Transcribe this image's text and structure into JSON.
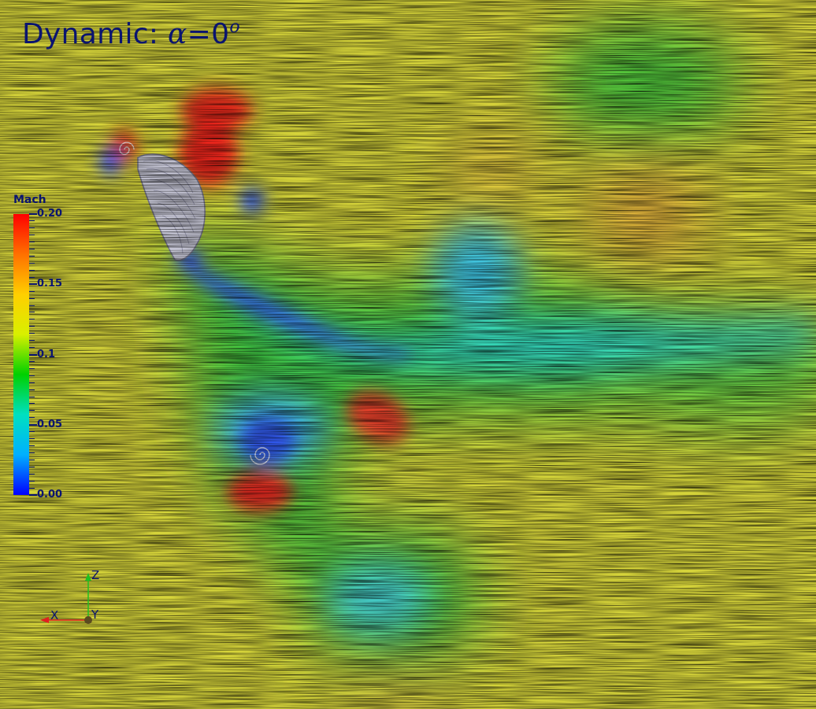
{
  "title": {
    "prefix": "Dynamic: ",
    "symbol": "α",
    "equals": "=0",
    "superscript": "o"
  },
  "colorbar": {
    "title": "Mach",
    "min": 0.0,
    "max": 0.2,
    "tick_labels": [
      {
        "text": "0.20",
        "value": 0.2
      },
      {
        "text": "0.15",
        "value": 0.15
      },
      {
        "text": "0.1",
        "value": 0.1
      },
      {
        "text": "0.05",
        "value": 0.05
      },
      {
        "text": "0.00",
        "value": 0.0
      }
    ],
    "colors": [
      "#0000ff",
      "#00b0ff",
      "#00e0c0",
      "#00d000",
      "#d8f000",
      "#ffcf00",
      "#ff7000",
      "#ff0000"
    ]
  },
  "axes": {
    "z_label": "Z",
    "x_label": "X",
    "y_label": "Y",
    "z_color": "#20c020",
    "x_color": "#e02020",
    "y_color": "#5a4a20"
  }
}
